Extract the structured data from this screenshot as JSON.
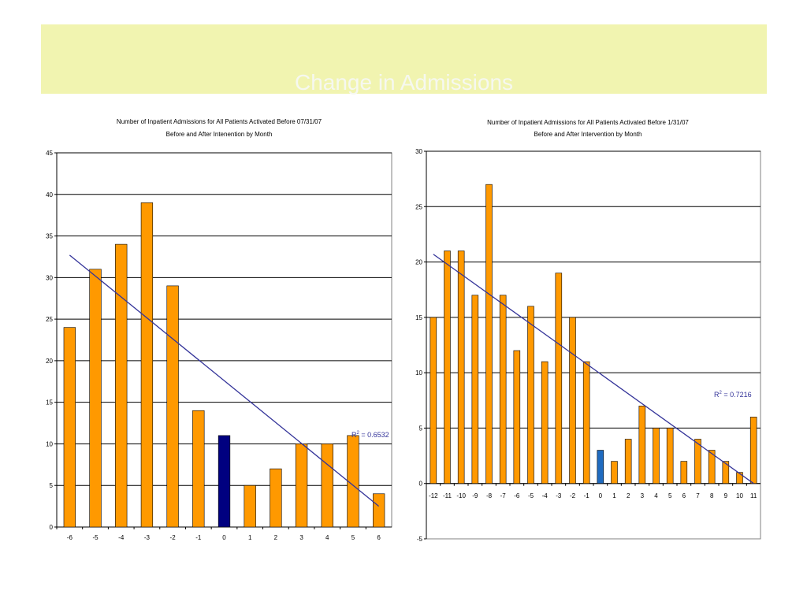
{
  "page": {
    "title": "Change in Admissions"
  },
  "chart_data": [
    {
      "type": "bar",
      "title": "Number of Inpatient Admissions for All Patients Activated Before 07/31/07",
      "subtitle": "Before and After Intenention by Month",
      "categories": [
        "-6",
        "-5",
        "-4",
        "-3",
        "-2",
        "-1",
        "0",
        "1",
        "2",
        "3",
        "4",
        "5",
        "6"
      ],
      "values": [
        24,
        31,
        34,
        39,
        29,
        14,
        11,
        5,
        7,
        10,
        10,
        11,
        4
      ],
      "ylim": [
        0,
        45
      ],
      "yticks": [
        0,
        5,
        10,
        15,
        20,
        25,
        30,
        35,
        40,
        45
      ],
      "grid": true,
      "bar_color": "#ff9900",
      "highlight_category": "0",
      "highlight_color": "#000080",
      "trendline": {
        "start": 32.7,
        "end": 2.5,
        "color": "#333399"
      },
      "r2_label": {
        "prefix": "R",
        "sup": "2",
        "value": " = 0.6532"
      }
    },
    {
      "type": "bar",
      "title": "Number of Inpatient Admissions for All Patients Activated Before 1/31/07",
      "subtitle": "Before and After Intervention by Month",
      "categories": [
        "-12",
        "-11",
        "-10",
        "-9",
        "-8",
        "-7",
        "-6",
        "-5",
        "-4",
        "-3",
        "-2",
        "-1",
        "0",
        "1",
        "2",
        "3",
        "4",
        "5",
        "6",
        "7",
        "8",
        "9",
        "10",
        "11"
      ],
      "values": [
        15,
        21,
        21,
        17,
        27,
        17,
        12,
        16,
        11,
        19,
        15,
        11,
        3,
        2,
        4,
        7,
        5,
        5,
        2,
        4,
        3,
        2,
        1,
        6
      ],
      "ylim": [
        -5,
        30
      ],
      "yticks": [
        -5,
        0,
        5,
        10,
        15,
        20,
        25,
        30
      ],
      "grid": true,
      "bar_color": "#ff9900",
      "highlight_category": "0",
      "highlight_color": "#1f6bc0",
      "trendline": {
        "start": 20.7,
        "end": 0,
        "color": "#333399"
      },
      "r2_label": {
        "prefix": "R",
        "sup": "2",
        "value": " = 0.7216"
      }
    }
  ]
}
